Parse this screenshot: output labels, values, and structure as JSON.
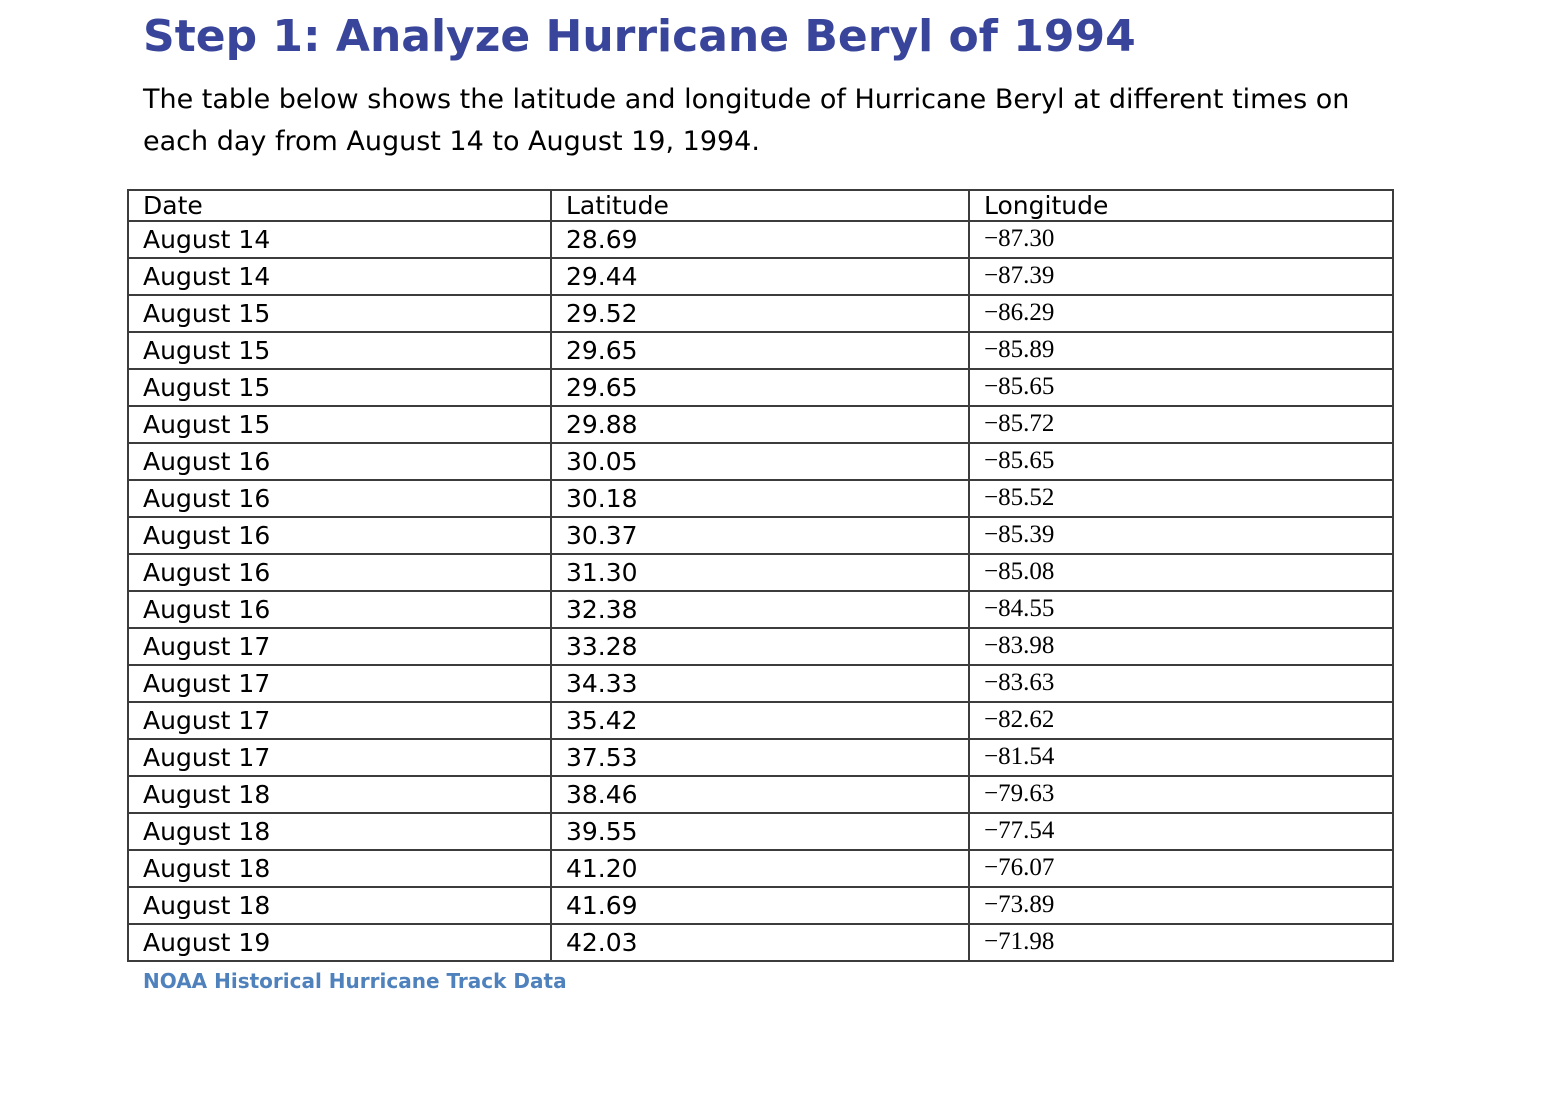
{
  "page": {
    "title": "Step 1: Analyze Hurricane Beryl of 1994",
    "intro": "The table below shows the latitude and longitude of Hurricane Beryl at different times on each day from August 14 to August 19, 1994."
  },
  "table": {
    "columns": [
      {
        "key": "date",
        "label": "Date"
      },
      {
        "key": "latitude",
        "label": "Latitude"
      },
      {
        "key": "longitude",
        "label": "Longitude"
      }
    ],
    "rows": [
      {
        "date": "August 14",
        "latitude": "28.69",
        "longitude": "−87.30"
      },
      {
        "date": "August 14",
        "latitude": "29.44",
        "longitude": "−87.39"
      },
      {
        "date": "August 15",
        "latitude": "29.52",
        "longitude": "−86.29"
      },
      {
        "date": "August 15",
        "latitude": "29.65",
        "longitude": "−85.89"
      },
      {
        "date": "August 15",
        "latitude": "29.65",
        "longitude": "−85.65"
      },
      {
        "date": "August 15",
        "latitude": "29.88",
        "longitude": "−85.72"
      },
      {
        "date": "August 16",
        "latitude": "30.05",
        "longitude": "−85.65"
      },
      {
        "date": "August 16",
        "latitude": "30.18",
        "longitude": "−85.52"
      },
      {
        "date": "August 16",
        "latitude": "30.37",
        "longitude": "−85.39"
      },
      {
        "date": "August 16",
        "latitude": "31.30",
        "longitude": "−85.08"
      },
      {
        "date": "August 16",
        "latitude": "32.38",
        "longitude": "−84.55"
      },
      {
        "date": "August 17",
        "latitude": "33.28",
        "longitude": "−83.98"
      },
      {
        "date": "August 17",
        "latitude": "34.33",
        "longitude": "−83.63"
      },
      {
        "date": "August 17",
        "latitude": "35.42",
        "longitude": "−82.62"
      },
      {
        "date": "August 17",
        "latitude": "37.53",
        "longitude": "−81.54"
      },
      {
        "date": "August 18",
        "latitude": "38.46",
        "longitude": "−79.63"
      },
      {
        "date": "August 18",
        "latitude": "39.55",
        "longitude": "−77.54"
      },
      {
        "date": "August 18",
        "latitude": "41.20",
        "longitude": "−76.07"
      },
      {
        "date": "August 18",
        "latitude": "41.69",
        "longitude": "−73.89"
      },
      {
        "date": "August 19",
        "latitude": "42.03",
        "longitude": "−71.98"
      }
    ]
  },
  "source": {
    "label": "NOAA Historical Hurricane Track Data"
  },
  "colors": {
    "title": "#38459A",
    "source_link": "#4F81BD",
    "table_border": "#3C3C3C",
    "body_text": "#000000"
  }
}
